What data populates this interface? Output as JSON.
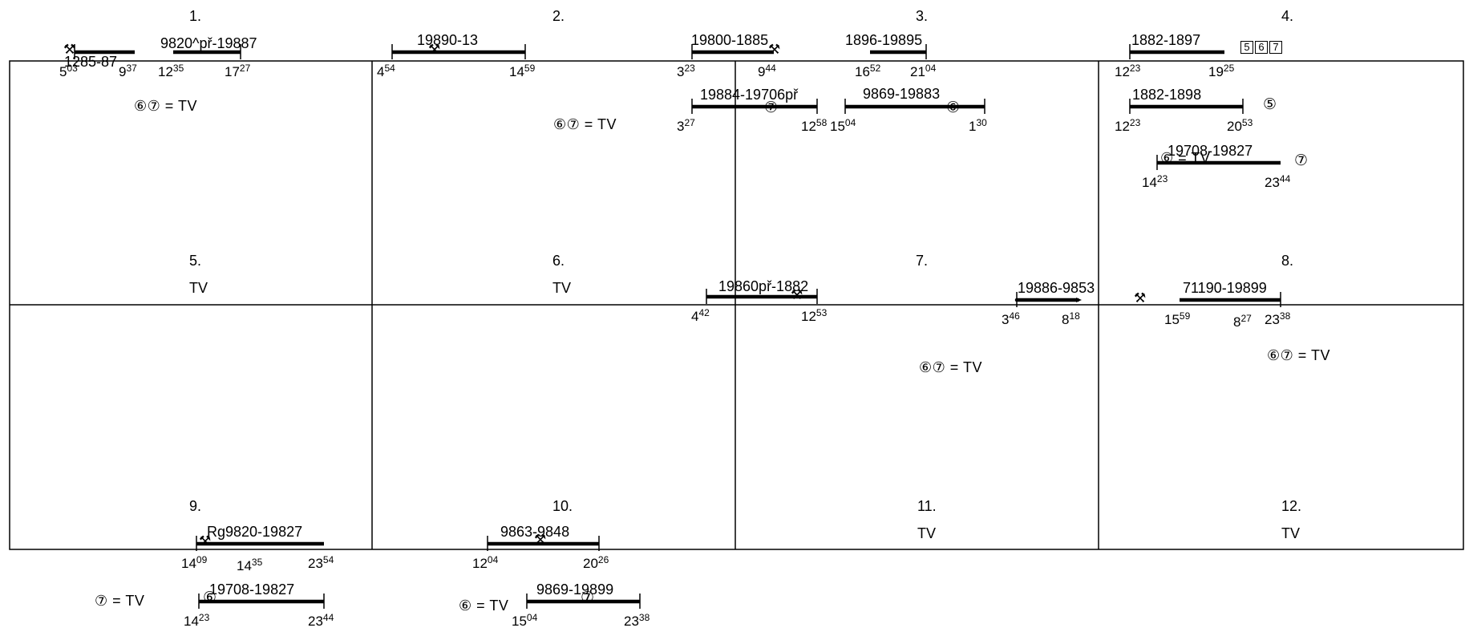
{
  "cells": [
    {
      "number": "1."
    },
    {
      "number": "2."
    },
    {
      "number": "3."
    },
    {
      "number": "4."
    },
    {
      "number": "5.",
      "note": "TV"
    },
    {
      "number": "6.",
      "note": "TV"
    },
    {
      "number": "7."
    },
    {
      "number": "8."
    },
    {
      "number": "9."
    },
    {
      "number": "10."
    },
    {
      "number": "11.",
      "note": "TV"
    },
    {
      "number": "12.",
      "note": "TV"
    }
  ],
  "legends": {
    "c1": "⑥⑦ = TV",
    "c2": "⑥⑦ = TV",
    "c4": "⑥ = TV",
    "c7": "⑥⑦ = TV",
    "c8": "⑥⑦ = TV",
    "b9": "⑦ = TV",
    "b10": "⑥ = TV"
  },
  "day_markers": {
    "d5": "5",
    "d6": "6",
    "d7": "7",
    "c3_7": "⑦",
    "c3_6": "⑥",
    "c4_5": "⑤",
    "c4_7": "⑦",
    "b9_6": "⑥",
    "b10_7": "⑦"
  },
  "icons": {
    "depot": "hammer-pick-icon",
    "depot_glyph": "⚒"
  },
  "segments": {
    "s1a": {
      "label": "1285-87",
      "start": {
        "h": "5",
        "m": "03"
      },
      "end": {
        "h": "9",
        "m": "37"
      }
    },
    "s1b": {
      "label": "9820^př-19887",
      "start": {
        "h": "12",
        "m": "35"
      },
      "end": {
        "h": "17",
        "m": "27"
      }
    },
    "s2a": {
      "label": "19890-13",
      "start": {
        "h": "4",
        "m": "54"
      },
      "end": {
        "h": "14",
        "m": "59"
      }
    },
    "s3a": {
      "label": "19800-1885",
      "start": {
        "h": "3",
        "m": "23"
      },
      "end": {
        "h": "9",
        "m": "44"
      }
    },
    "s3b": {
      "label": "1896-19895",
      "start": {
        "h": "16",
        "m": "52"
      },
      "end": {
        "h": "21",
        "m": "04"
      }
    },
    "s3c": {
      "label": "19884-19706př",
      "start": {
        "h": "3",
        "m": "27"
      },
      "end": {
        "h": "12",
        "m": "58"
      }
    },
    "s3d": {
      "label": "9869-19883",
      "start": {
        "h": "15",
        "m": "04"
      },
      "end": {
        "h": "1",
        "m": "30"
      }
    },
    "s4a": {
      "label": "1882-1897",
      "start": {
        "h": "12",
        "m": "23"
      },
      "end": {
        "h": "19",
        "m": "25"
      }
    },
    "s4b": {
      "label": "1882-1898",
      "start": {
        "h": "12",
        "m": "23"
      },
      "end": {
        "h": "20",
        "m": "53"
      }
    },
    "s4c": {
      "label": "19708-19827",
      "start": {
        "h": "14",
        "m": "23"
      },
      "end": {
        "h": "23",
        "m": "44"
      }
    },
    "s7a": {
      "label": "19860př-1882",
      "start": {
        "h": "4",
        "m": "42"
      },
      "end": {
        "h": "12",
        "m": "53"
      }
    },
    "s8a": {
      "label": "19886-9853",
      "start": {
        "h": "3",
        "m": "46"
      },
      "end": {
        "h": "8",
        "m": "18"
      }
    },
    "s8b": {
      "label": "71190-19899",
      "start": {
        "h": "15",
        "m": "59"
      },
      "end": {
        "h": "23",
        "m": "38"
      }
    },
    "s8mid": {
      "h": "8",
      "m": "27"
    },
    "s9a": {
      "label": "Rg9820-19827",
      "start": {
        "h": "14",
        "m": "09"
      },
      "end": {
        "h": "23",
        "m": "54"
      }
    },
    "s9mid": {
      "h": "14",
      "m": "35"
    },
    "s10a": {
      "label": "9863-9848",
      "start": {
        "h": "12",
        "m": "04"
      },
      "end": {
        "h": "20",
        "m": "26"
      }
    },
    "s9b": {
      "label": "19708-19827",
      "start": {
        "h": "14",
        "m": "23"
      },
      "end": {
        "h": "23",
        "m": "44"
      }
    },
    "s10b": {
      "label": "9869-19899",
      "start": {
        "h": "15",
        "m": "04"
      },
      "end": {
        "h": "23",
        "m": "38"
      }
    }
  }
}
